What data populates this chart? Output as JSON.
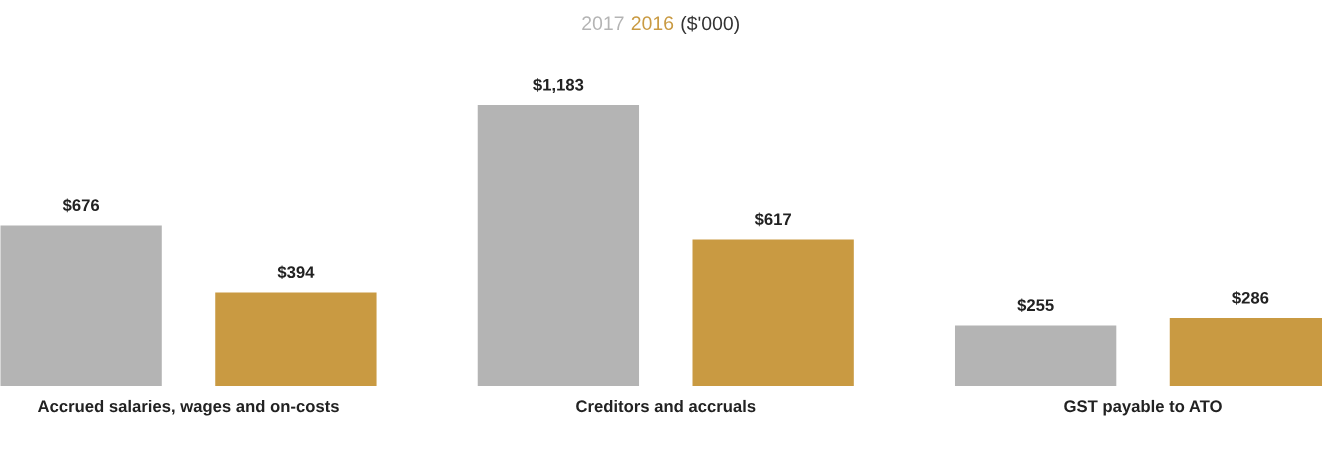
{
  "chart_data": {
    "type": "bar",
    "title": "($'000)",
    "legend": "top",
    "categories": [
      "Accrued salaries, wages and on-costs",
      "Creditors and accruals",
      "GST payable to ATO"
    ],
    "series": [
      {
        "name": "2017",
        "color": "#b4b4b4",
        "values": [
          676,
          1183,
          255
        ],
        "value_labels": [
          "$676",
          "$1,183",
          "$255"
        ]
      },
      {
        "name": "2016",
        "color": "#c99a42",
        "values": [
          394,
          617,
          286
        ],
        "value_labels": [
          "$394",
          "$617",
          "$286"
        ]
      }
    ]
  }
}
